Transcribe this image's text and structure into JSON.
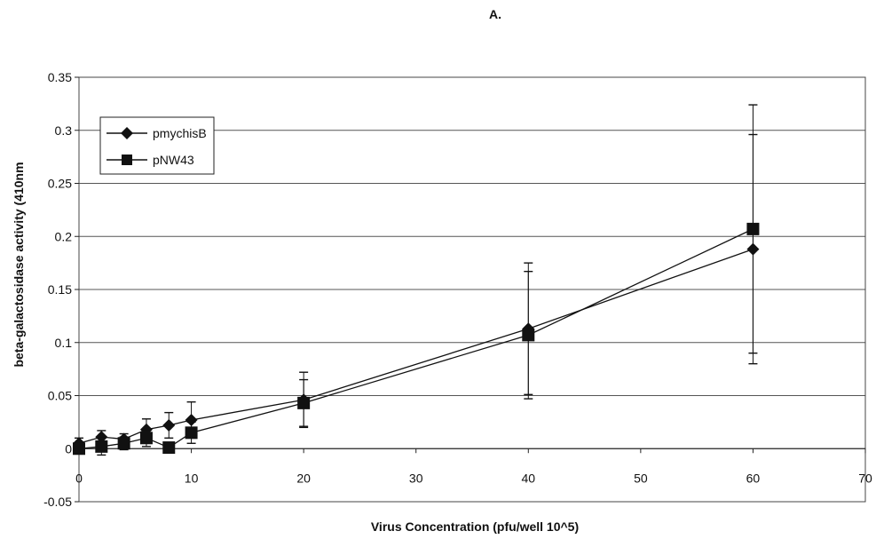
{
  "chart_data": {
    "type": "line",
    "panel_label": "A.",
    "title": "",
    "xlabel": "Virus Concentration (pfu/well 10^5)",
    "ylabel": "beta-galactosidase activity (410nm",
    "xlim": [
      0,
      70
    ],
    "ylim": [
      -0.05,
      0.35
    ],
    "x_ticks": [
      0,
      10,
      20,
      30,
      40,
      50,
      60,
      70
    ],
    "y_ticks": [
      -0.05,
      0,
      0.05,
      0.1,
      0.15,
      0.2,
      0.25,
      0.3,
      0.35
    ],
    "grid": "horizontal",
    "legend_position": "top-left",
    "series": [
      {
        "name": "pmychisB",
        "marker": "diamond",
        "color": "#111111",
        "x": [
          0,
          2,
          4,
          6,
          8,
          10,
          20,
          40,
          60
        ],
        "y": [
          0.005,
          0.011,
          0.009,
          0.018,
          0.022,
          0.027,
          0.046,
          0.113,
          0.188
        ],
        "error": [
          0.005,
          0.006,
          0.005,
          0.01,
          0.012,
          0.017,
          0.026,
          0.062,
          0.108
        ]
      },
      {
        "name": "pNW43",
        "marker": "square",
        "color": "#111111",
        "x": [
          0,
          2,
          4,
          6,
          8,
          10,
          20,
          40,
          60
        ],
        "y": [
          0.0,
          0.002,
          0.005,
          0.01,
          0.001,
          0.015,
          0.043,
          0.107,
          0.207
        ],
        "error": [
          0.004,
          0.008,
          0.006,
          0.008,
          0.004,
          0.01,
          0.022,
          0.06,
          0.117
        ]
      }
    ]
  }
}
